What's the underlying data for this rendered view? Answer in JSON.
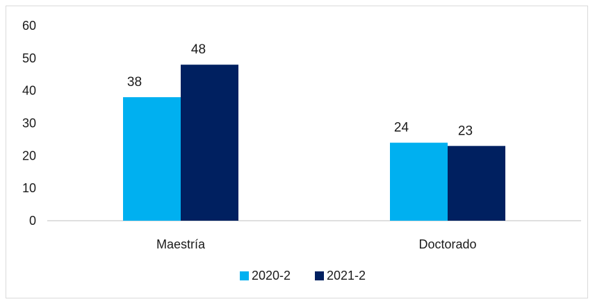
{
  "chart_data": {
    "type": "bar",
    "categories": [
      "Maestría",
      "Doctorado"
    ],
    "series": [
      {
        "name": "2020-2",
        "values": [
          38,
          24
        ],
        "color": "#00b0f0"
      },
      {
        "name": "2021-2",
        "values": [
          48,
          23
        ],
        "color": "#002060"
      }
    ],
    "ylim": [
      0,
      60
    ],
    "yticks": [
      0,
      10,
      20,
      30,
      40,
      50,
      60
    ],
    "grid": false,
    "legend_position": "bottom",
    "data_labels": true
  }
}
